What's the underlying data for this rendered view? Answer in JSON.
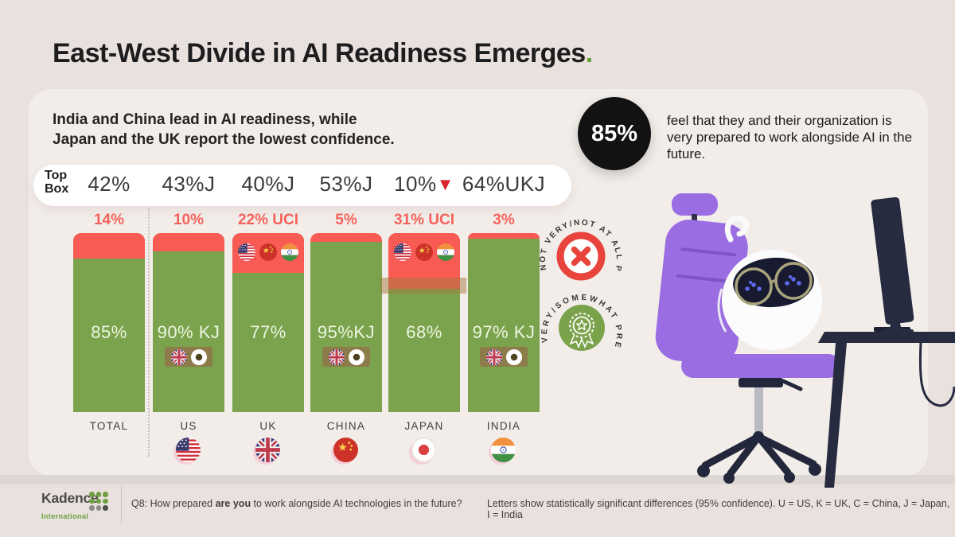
{
  "title": {
    "text": "East-West Divide in AI Readiness Emerges",
    "period": "."
  },
  "subtitle": {
    "line1": "India and China lead in AI readiness, while",
    "line2": "Japan and the UK report the lowest confidence."
  },
  "stat_callout": {
    "value": "85%",
    "text": "feel that they and their organization is very prepared to work alongside AI in the future."
  },
  "top_box": {
    "label_line1": "Top",
    "label_line2": "Box"
  },
  "icons": {
    "down_triangle": "▼"
  },
  "legend": {
    "not_prepared": "NOT VERY/NOT AT ALL PREPARED",
    "prepared": "VERY/SOMEWHAT PREPARED"
  },
  "chart_data": {
    "type": "bar",
    "stacked": true,
    "unit": "percent",
    "ylim": [
      0,
      100
    ],
    "grid": false,
    "legend_position": "right",
    "categories": [
      "TOTAL",
      "US",
      "UK",
      "CHINA",
      "JAPAN",
      "INDIA"
    ],
    "series": [
      {
        "name": "NOT VERY/NOT AT ALL PREPARED",
        "color": "#f85b54",
        "values": [
          14,
          10,
          22,
          5,
          31,
          3
        ],
        "data_labels": [
          "14%",
          "10%",
          "22% UCI",
          "5%",
          "31% UCI",
          "3%"
        ]
      },
      {
        "name": "VERY/SOMEWHAT PREPARED",
        "color": "#7ba24c",
        "values": [
          85,
          90,
          77,
          95,
          68,
          97
        ],
        "data_labels": [
          "85%",
          "90% KJ",
          "77%",
          "95%KJ",
          "68%",
          "97% KJ"
        ]
      }
    ],
    "top_box_values": [
      "42%",
      "43%J",
      "40%J",
      "53%J",
      "10%",
      "64%UKJ"
    ],
    "top_box_arrow_index": 4,
    "bars": [
      {
        "category": "TOTAL",
        "top_box": "42%",
        "red_label": "14%",
        "red_pct": 14,
        "green_label": "85%",
        "flag_ref": ""
      },
      {
        "category": "US",
        "top_box": "43%J",
        "red_label": "10%",
        "red_pct": 10,
        "green_label": "90% KJ",
        "flag_ref": "#flag-us"
      },
      {
        "category": "UK",
        "top_box": "40%J",
        "red_label": "22% UCI",
        "red_pct": 22,
        "green_label": "77%",
        "flag_ref": "#flag-uk"
      },
      {
        "category": "CHINA",
        "top_box": "53%J",
        "red_label": "5%",
        "red_pct": 5,
        "green_label": "95%KJ",
        "flag_ref": "#flag-cn"
      },
      {
        "category": "JAPAN",
        "top_box": "10%",
        "red_label": "31% UCI",
        "red_pct": 31,
        "green_label": "68%",
        "flag_ref": "#flag-jp"
      },
      {
        "category": "INDIA",
        "top_box": "64%UKJ",
        "red_label": "3%",
        "red_pct": 3,
        "green_label": "97% KJ",
        "flag_ref": "#flag-in"
      }
    ],
    "sig_flags_in_red": [
      "#flag-us",
      "#flag-cn",
      "#flag-in"
    ],
    "sig_flags_in_green": [
      "#flag-uk",
      "#flag-jp-chip"
    ]
  },
  "footer": {
    "logo": {
      "name": "Kadence",
      "sub": "International",
      "dot_colors": [
        "#6f9e43",
        "#6f9e43",
        "#6f9e43",
        "#6f9e43",
        "#6f9e43",
        "#6f9e43",
        "#8b8b8b",
        "#8b8b8b",
        "#4f4f4f"
      ]
    },
    "q8_prefix": "Q8: How prepared ",
    "q8_bold": "are you",
    "q8_suffix": " to work alongside AI technologies in the future?",
    "note": "Letters show statistically significant differences (95% confidence). U = US, K = UK, C = China, J = Japan, I = India"
  },
  "colors": {
    "page_bg": "#e9e1dd",
    "card_bg": "#f2ede9",
    "bar_green": "#7ba24c",
    "bar_red": "#f85b54",
    "accent_green": "#5fa13d",
    "triangle_red": "#d8232a",
    "chip_olive": "#8c7c4a",
    "black_circle": "#121212"
  }
}
